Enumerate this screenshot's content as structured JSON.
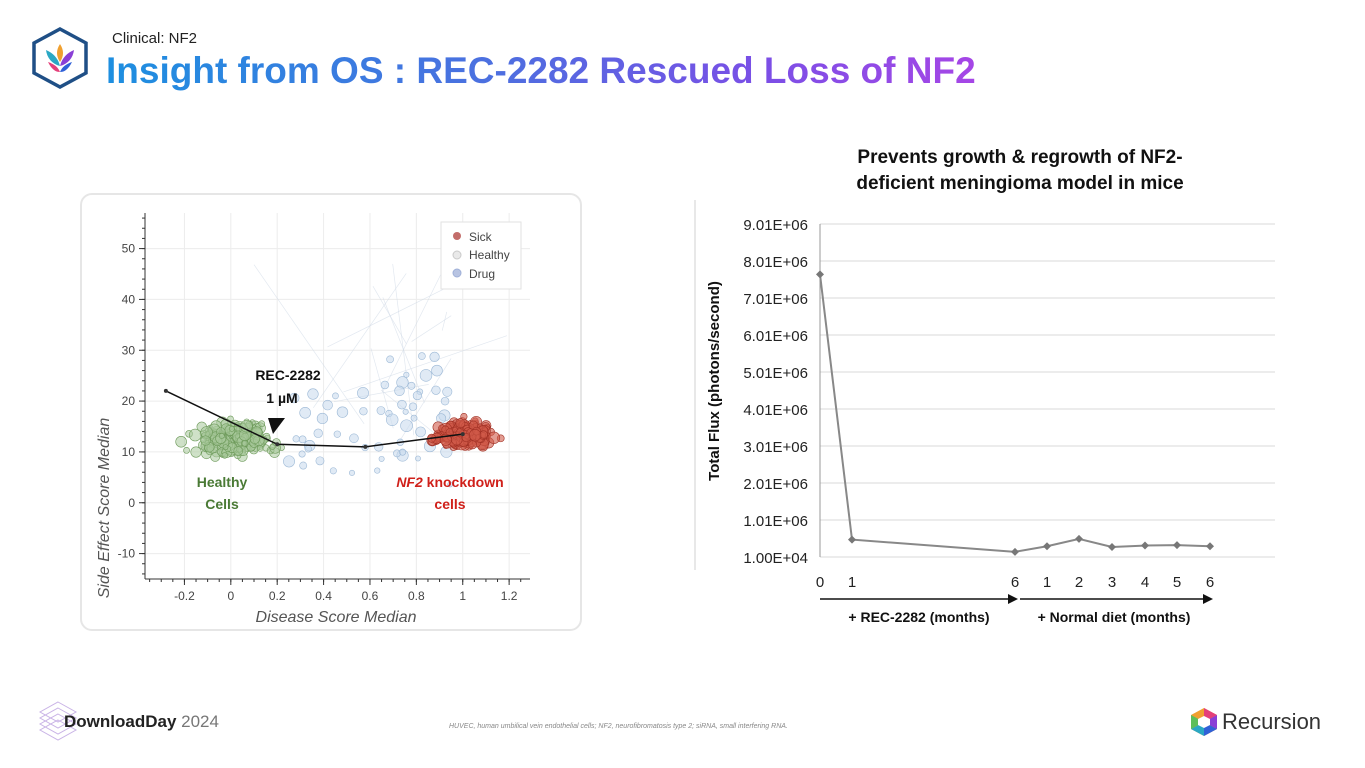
{
  "header": {
    "eyebrow": "Clinical: NF2",
    "title": "Insight from OS : REC-2282 Rescued Loss of NF2"
  },
  "colors": {
    "title_start": "#1d8fe0",
    "title_end": "#a646e6",
    "sick": "#c0392b",
    "healthy": "#5a8a44",
    "drug": "#8fb8dc",
    "line": "#888888"
  },
  "chart_data": [
    {
      "type": "scatter",
      "xlabel": "Disease Score Median",
      "ylabel": "Side Effect Score Median",
      "xlim": [
        -0.37,
        1.29
      ],
      "ylim": [
        -15,
        57
      ],
      "xticks": [
        -0.2,
        0,
        0.2,
        0.4,
        0.6,
        0.8,
        1,
        1.2
      ],
      "xtick_labels": [
        "-0.2",
        "0",
        "0.2",
        "0.4",
        "0.6",
        "0.8",
        "1",
        "1.2"
      ],
      "yticks": [
        -10,
        0,
        10,
        20,
        30,
        40,
        50
      ],
      "ytick_labels": [
        "-10",
        "0",
        "10",
        "20",
        "30",
        "40",
        "50"
      ],
      "legend": {
        "position": "top-right",
        "entries": [
          {
            "label": "Sick",
            "color": "#c0392b"
          },
          {
            "label": "Healthy",
            "color": "#d8d8d8"
          },
          {
            "label": "Drug",
            "color": "#9fb0d8"
          }
        ]
      },
      "series": [
        {
          "name": "Healthy",
          "x_center": 0.0,
          "x_spread": 0.13,
          "y_center": 12.5,
          "y_spread": 2.5,
          "count": 220
        },
        {
          "name": "Sick",
          "x_center": 1.0,
          "x_spread": 0.09,
          "y_center": 13.5,
          "y_spread": 1.8,
          "count": 240
        },
        {
          "name": "Drug",
          "x_center": 0.6,
          "x_spread": 0.35,
          "y_center": 16,
          "y_spread": 6,
          "count": 60
        }
      ],
      "trajectory": {
        "x": [
          -0.28,
          0.2,
          0.58,
          1.0
        ],
        "y": [
          22,
          11.5,
          11,
          13.5
        ]
      },
      "annotations": {
        "drug_name": "REC-2282",
        "dose": "1 µM",
        "healthy_label_1": "Healthy",
        "healthy_label_2": "Cells",
        "sick_label_gene": "NF2",
        "sick_label_rest": " knockdown",
        "sick_label_2": "cells"
      }
    },
    {
      "type": "line",
      "title_line1": "Prevents growth & regrowth of NF2-",
      "title_line2": "deficient meningioma model in mice",
      "ylabel": "Total Flux (photons/second)",
      "categories": [
        "0",
        "1",
        "6",
        "1",
        "2",
        "3",
        "4",
        "5",
        "6"
      ],
      "values": [
        7650000,
        480000,
        150000,
        300000,
        500000,
        280000,
        320000,
        330000,
        300000
      ],
      "ylim": [
        10000,
        9010000
      ],
      "yticks": [
        10000,
        1010000,
        2010000,
        3010000,
        4010000,
        5010000,
        6010000,
        7010000,
        8010000,
        9010000
      ],
      "ytick_labels": [
        "1.00E+04",
        "1.01E+06",
        "2.01E+06",
        "3.01E+06",
        "4.01E+06",
        "5.01E+06",
        "6.01E+06",
        "7.01E+06",
        "8.01E+06",
        "9.01E+06"
      ],
      "phase_labels": [
        "+ REC-2282 (months)",
        "+ Normal diet (months)"
      ]
    }
  ],
  "footer": {
    "brand_bold": "DownloadDay",
    "brand_year": " 2024",
    "footnote": "HUVEC, human umbilical vein endothelial cells; NF2, neurofibromatosis type 2; siRNA, small interfering RNA.",
    "company": "Recursion"
  }
}
